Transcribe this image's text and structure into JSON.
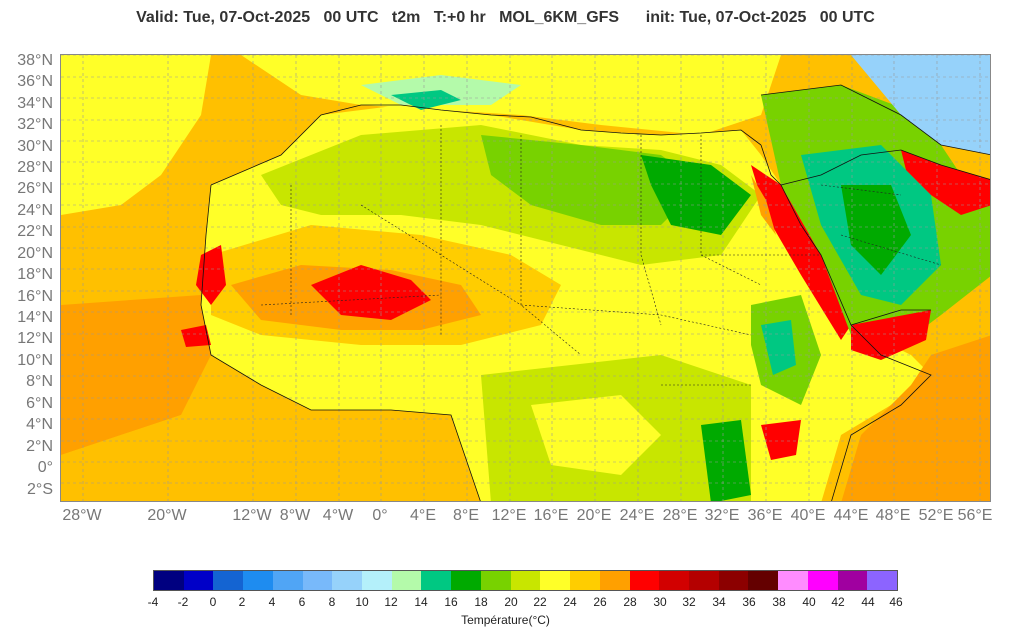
{
  "header": {
    "title": "Valid: Tue, 07-Oct-2025   00 UTC   t2m   T:+0 hr   MOL_6KM_GFS      init: Tue, 07-Oct-2025   00 UTC"
  },
  "map": {
    "lat_labels": [
      "38°N",
      "36°N",
      "34°N",
      "32°N",
      "30°N",
      "28°N",
      "26°N",
      "24°N",
      "22°N",
      "20°N",
      "18°N",
      "16°N",
      "14°N",
      "12°N",
      "10°N",
      "8°N",
      "6°N",
      "4°N",
      "2°N",
      "0°",
      "2°S"
    ],
    "lon_labels": [
      "28°W",
      "20°W",
      "12°W",
      "8°W",
      "4°W",
      "0°",
      "4°E",
      "8°E",
      "12°E",
      "16°E",
      "20°E",
      "24°E",
      "28°E",
      "32°E",
      "36°E",
      "40°E",
      "44°E",
      "48°E",
      "52°E",
      "56°E"
    ]
  },
  "colorbar": {
    "title": "Température(°C)",
    "ticks": [
      "-4",
      "-2",
      "0",
      "2",
      "4",
      "6",
      "8",
      "10",
      "12",
      "14",
      "16",
      "18",
      "20",
      "22",
      "24",
      "26",
      "28",
      "30",
      "32",
      "34",
      "36",
      "38",
      "40",
      "42",
      "44",
      "46"
    ],
    "colors": [
      "#000080",
      "#0000c8",
      "#1464d2",
      "#1e8cf0",
      "#50a5f5",
      "#78b9fa",
      "#96d2fa",
      "#b4f0fa",
      "#b4faaa",
      "#00c882",
      "#00aa00",
      "#78d200",
      "#c8e600",
      "#ffff28",
      "#ffcd00",
      "#ffa000",
      "#ff0000",
      "#d20000",
      "#b40000",
      "#8c0000",
      "#640000",
      "#ff8cff",
      "#ff00ff",
      "#a000a0",
      "#8c64ff"
    ]
  }
}
